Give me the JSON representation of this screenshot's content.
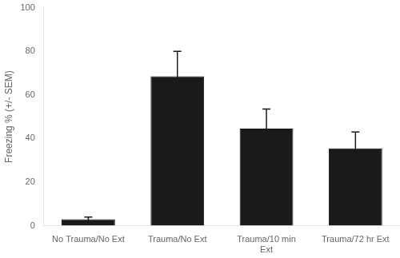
{
  "chart_data": {
    "type": "bar",
    "categories": [
      "No Trauma/No Ext",
      "Trauma/No Ext",
      "Trauma/10 min\nExt",
      "Trauma/72 hr Ext"
    ],
    "values": [
      3.0,
      68.5,
      44.5,
      35.5
    ],
    "errors": [
      1.0,
      11.5,
      9.0,
      7.5
    ],
    "color": "#1a1a1a",
    "ylabel": "Freezing % (+/- SEM)",
    "ylim": [
      0,
      100
    ],
    "yticks": [
      0,
      20,
      40,
      60,
      80,
      100
    ],
    "grid": false
  }
}
